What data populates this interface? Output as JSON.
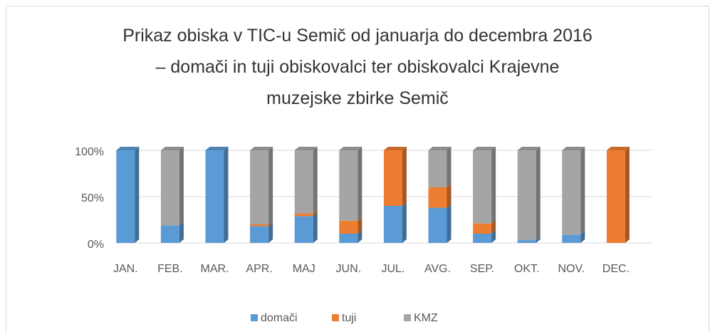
{
  "chart_data": {
    "type": "bar",
    "stacked": true,
    "title": "Prikaz obiska v TIC-u Semič od januarja do decembra 2016 – domači in tuji obiskovalci ter obiskovalci Krajevne muzejske zbirke Semič",
    "categories": [
      "JAN.",
      "FEB.",
      "MAR.",
      "APR.",
      "MAJ",
      "JUN.",
      "JUL.",
      "AVG.",
      "SEP.",
      "OKT.",
      "NOV.",
      "DEC."
    ],
    "series": [
      {
        "name": "domači",
        "color": "#5b9bd5",
        "values": [
          100,
          19,
          100,
          18,
          29,
          10,
          40,
          38,
          10,
          3,
          9,
          0
        ]
      },
      {
        "name": "tuji",
        "color": "#ed7d31",
        "values": [
          0,
          0,
          0,
          2,
          3,
          14,
          60,
          22,
          11,
          0,
          0,
          100
        ]
      },
      {
        "name": "KMZ",
        "color": "#a5a5a5",
        "values": [
          0,
          81,
          0,
          80,
          68,
          76,
          0,
          40,
          79,
          97,
          91,
          0
        ]
      }
    ],
    "ylim": [
      0,
      100
    ],
    "yticks": [
      {
        "value": 0,
        "label": "0%"
      },
      {
        "value": 50,
        "label": "50%"
      },
      {
        "value": 100,
        "label": "100%"
      }
    ],
    "grid": true,
    "legend": "bottom"
  }
}
